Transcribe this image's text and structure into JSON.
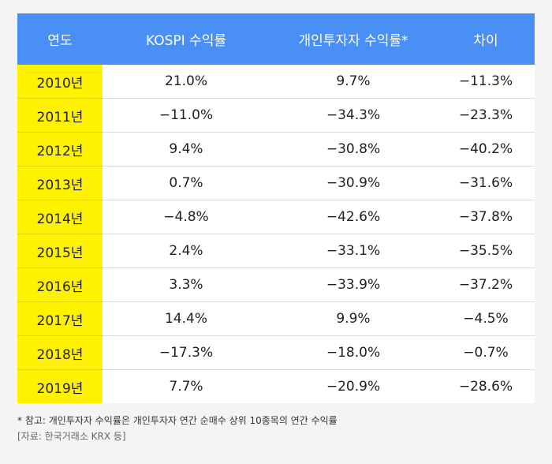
{
  "chart_data": {
    "type": "table",
    "columns": [
      "연도",
      "KOSPI 수익률",
      "개인투자자 수익률*",
      "차이"
    ],
    "rows": [
      [
        "2010년",
        "21.0%",
        "9.7%",
        "−11.3%"
      ],
      [
        "2011년",
        "−11.0%",
        "−34.3%",
        "−23.3%"
      ],
      [
        "2012년",
        "9.4%",
        "−30.8%",
        "−40.2%"
      ],
      [
        "2013년",
        "0.7%",
        "−30.9%",
        "−31.6%"
      ],
      [
        "2014년",
        "−4.8%",
        "−42.6%",
        "−37.8%"
      ],
      [
        "2015년",
        "2.4%",
        "−33.1%",
        "−35.5%"
      ],
      [
        "2016년",
        "3.3%",
        "−33.9%",
        "−37.2%"
      ],
      [
        "2017년",
        "14.4%",
        "9.9%",
        "−4.5%"
      ],
      [
        "2018년",
        "−17.3%",
        "−18.0%",
        "−0.7%"
      ],
      [
        "2019년",
        "7.7%",
        "−20.9%",
        "−28.6%"
      ]
    ]
  },
  "footnote": "* 참고: 개인투자자 수익률은 개인투자자 연간 순매수 상위 10종목의 연간 수익률",
  "source": "[자료: 한국거래소 KRX 등]",
  "colors": {
    "header_bg": "#4a8ff5",
    "year_bg": "#fff200",
    "page_bg": "#f4f4f6"
  }
}
